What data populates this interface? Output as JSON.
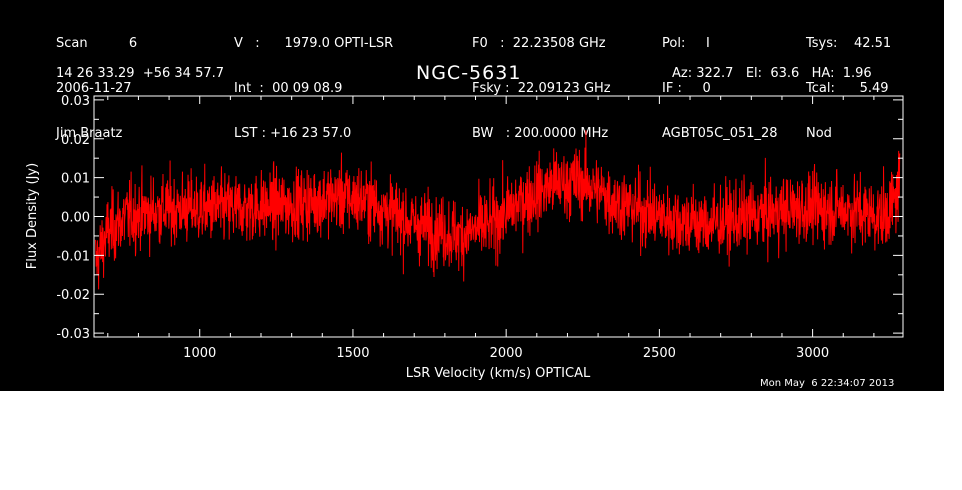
{
  "header": {
    "col1": [
      "Scan          6",
      "2006-11-27",
      "Jim Braatz"
    ],
    "col2": [
      "V   :      1979.0 OPTI-LSR",
      "Int  :  00 09 08.9",
      "LST : +16 23 57.0"
    ],
    "col3": [
      "F0   :  22.23508 GHz",
      "Fsky :  22.09123 GHz",
      "BW   : 200.0000 MHz"
    ],
    "col4": [
      "Pol:     I",
      "IF :     0",
      "AGBT05C_051_28"
    ],
    "col5": [
      "Tsys:    42.51",
      "Tcal:      5.49",
      "Nod"
    ],
    "coords": "14 26 33.29  +56 34 57.7",
    "title": "NGC-5631",
    "azel": "Az: 322.7   El:  63.6   HA:  1.96",
    "timestamp": "Mon May  6 22:34:07 2013"
  },
  "colors": {
    "background": "#000000",
    "trace": "#ff0000",
    "axes": "#ffffff"
  },
  "chart_data": {
    "type": "line",
    "xlabel": "LSR Velocity (km/s) OPTICAL",
    "ylabel": "Flux Density (Jy)",
    "xlim": [
      655,
      3295
    ],
    "ylim": [
      -0.031,
      0.031
    ],
    "x_ticks": [
      1000,
      1500,
      2000,
      2500,
      3000
    ],
    "x_tick_labels": [
      "1000",
      "1500",
      "2000",
      "2500",
      "3000"
    ],
    "y_ticks": [
      -0.03,
      -0.02,
      -0.01,
      0.0,
      0.01,
      0.02,
      0.03
    ],
    "y_tick_labels": [
      "-0.03",
      "-0.02",
      "-0.01",
      "0.00",
      "0.01",
      "0.02",
      "0.03"
    ],
    "series": [
      {
        "color": "#ff0000",
        "baseline": {
          "x": [
            660,
            700,
            760,
            900,
            1100,
            1300,
            1450,
            1550,
            1700,
            1850,
            1950,
            2050,
            2150,
            2250,
            2350,
            2500,
            2650,
            2800,
            2950,
            3100,
            3230,
            3270,
            3285
          ],
          "y": [
            -0.012,
            -0.004,
            0.0,
            0.002,
            0.002,
            0.003,
            0.005,
            0.004,
            -0.002,
            -0.005,
            -0.002,
            0.004,
            0.008,
            0.009,
            0.004,
            0.0,
            -0.002,
            0.0,
            0.002,
            0.002,
            0.0,
            0.004,
            0.01
          ]
        },
        "noise_rms": 0.0045
      }
    ]
  }
}
